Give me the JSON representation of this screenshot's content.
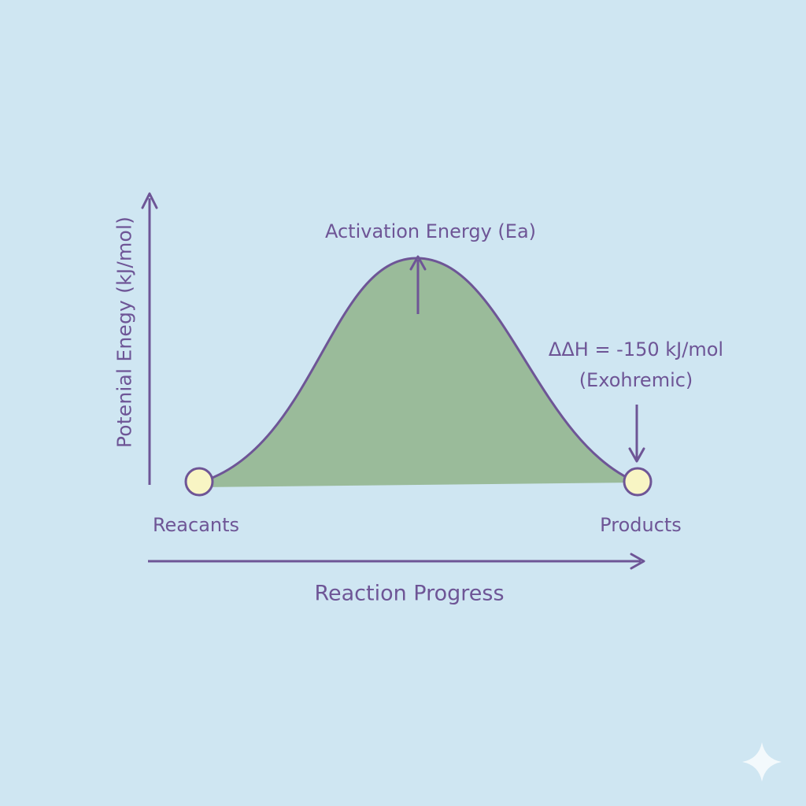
{
  "diagram": {
    "y_axis_title": "Potenial Enegy (kJ/mol)",
    "x_axis_title": "Reaction Progress",
    "activation_label": "Activation Energy (Ea)",
    "delta_h_label": "ΔΔH = -150 kJ/mol",
    "exothermic_label": "(Exohremic)",
    "reactants_label": "Reacants",
    "products_label": "Products"
  },
  "colors": {
    "background": "#cfe6f2",
    "curve_and_text": "#6e5596",
    "fill": "#9abb9a",
    "endpoint_fill": "#f8f5c4"
  },
  "icons": {
    "corner": "sparkle-icon"
  }
}
